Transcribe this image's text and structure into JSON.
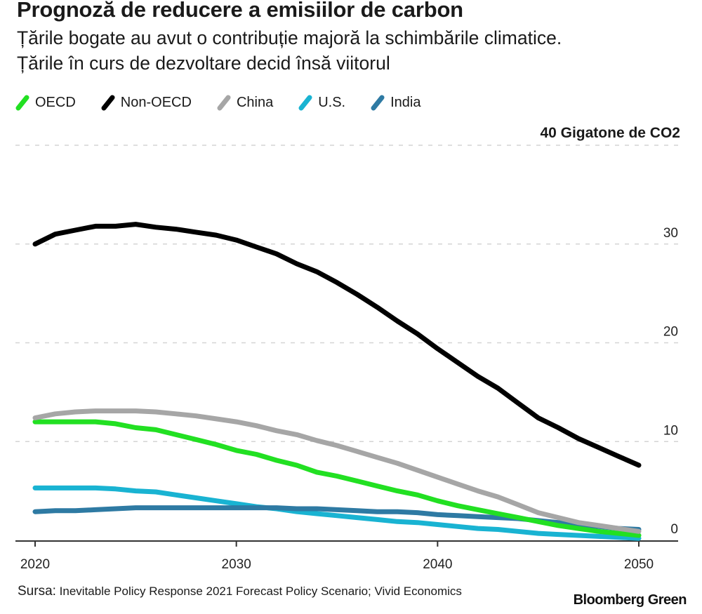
{
  "header": {
    "title": "Prognoză de reducere a emisiilor de carbon",
    "subtitle_line1": "Țările bogate au avut o contribuție majoră la schimbările climatice.",
    "subtitle_line2": "Țările în curs de dezvoltare decid însă viitorul"
  },
  "footer": {
    "source_prefix": "Sursa:",
    "source_text": "Inevitable Policy Response 2021 Forecast Policy Scenario; Vivid Economics",
    "brand": "Bloomberg Green"
  },
  "chart_data": {
    "type": "line",
    "title": "Prognoză de reducere a emisiilor de carbon",
    "subtitle": "Țările bogate au avut o contribuție majoră la schimbările climatice. Țările în curs de dezvoltare decid însă viitorul",
    "xlabel": "",
    "ylabel": "Gigatone de CO2",
    "unit_label": "40 Gigatone de CO2",
    "xlim": [
      2020,
      2050
    ],
    "ylim": [
      0,
      40
    ],
    "x_ticks": [
      2020,
      2030,
      2040,
      2050
    ],
    "x_tick_labels": [
      "2020",
      "2030",
      "2040",
      "2050"
    ],
    "y_ticks": [
      0,
      10,
      20,
      30,
      40
    ],
    "y_tick_labels": [
      "0",
      "10",
      "20",
      "30"
    ],
    "grid": "horizontal-dashed",
    "legend_position": "top-left",
    "x": [
      2020,
      2021,
      2022,
      2023,
      2024,
      2025,
      2026,
      2027,
      2028,
      2029,
      2030,
      2031,
      2032,
      2033,
      2034,
      2035,
      2036,
      2037,
      2038,
      2039,
      2040,
      2041,
      2042,
      2043,
      2044,
      2045,
      2046,
      2047,
      2048,
      2049,
      2050
    ],
    "series": [
      {
        "name": "OECD",
        "color": "#22e022",
        "values": [
          12.0,
          12.0,
          12.0,
          12.0,
          11.8,
          11.4,
          11.2,
          10.7,
          10.2,
          9.7,
          9.1,
          8.7,
          8.1,
          7.6,
          6.9,
          6.5,
          6.0,
          5.5,
          5.0,
          4.6,
          4.0,
          3.5,
          3.1,
          2.7,
          2.3,
          1.9,
          1.5,
          1.2,
          0.9,
          0.7,
          0.5
        ]
      },
      {
        "name": "Non-OECD",
        "color": "#000000",
        "values": [
          30.0,
          31.0,
          31.4,
          31.8,
          31.8,
          32.0,
          31.7,
          31.5,
          31.2,
          30.9,
          30.4,
          29.7,
          29.0,
          28.0,
          27.2,
          26.1,
          24.9,
          23.6,
          22.2,
          20.9,
          19.4,
          18.0,
          16.6,
          15.4,
          13.9,
          12.4,
          11.4,
          10.3,
          9.4,
          8.5,
          7.6
        ]
      },
      {
        "name": "China",
        "color": "#a6a6a6",
        "values": [
          12.4,
          12.8,
          13.0,
          13.1,
          13.1,
          13.1,
          13.0,
          12.8,
          12.6,
          12.3,
          12.0,
          11.6,
          11.1,
          10.7,
          10.1,
          9.6,
          9.0,
          8.4,
          7.8,
          7.1,
          6.4,
          5.7,
          5.0,
          4.4,
          3.6,
          2.8,
          2.3,
          1.8,
          1.5,
          1.2,
          0.9
        ]
      },
      {
        "name": "U.S.",
        "color": "#19b3d2",
        "values": [
          5.3,
          5.3,
          5.3,
          5.3,
          5.2,
          5.0,
          4.9,
          4.6,
          4.3,
          4.0,
          3.7,
          3.4,
          3.2,
          2.9,
          2.7,
          2.5,
          2.3,
          2.1,
          1.9,
          1.8,
          1.6,
          1.4,
          1.2,
          1.1,
          0.9,
          0.7,
          0.6,
          0.5,
          0.4,
          0.3,
          0.2
        ]
      },
      {
        "name": "India",
        "color": "#2e7aa3",
        "values": [
          2.9,
          3.0,
          3.0,
          3.1,
          3.2,
          3.3,
          3.3,
          3.3,
          3.3,
          3.3,
          3.3,
          3.3,
          3.3,
          3.2,
          3.2,
          3.1,
          3.0,
          2.9,
          2.9,
          2.8,
          2.6,
          2.5,
          2.4,
          2.3,
          2.2,
          2.0,
          1.8,
          1.6,
          1.4,
          1.2,
          1.1
        ]
      }
    ]
  }
}
